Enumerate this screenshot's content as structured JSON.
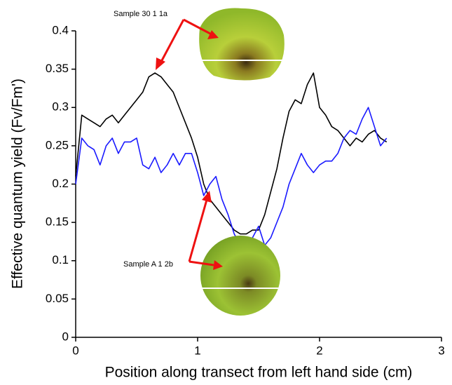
{
  "chart_data": {
    "type": "line",
    "x_label": "Position along transect from left hand side (cm)",
    "y_label": "Effective quantum yield (Fv/Fm')",
    "annotations": [
      "Sample 30 1 1a",
      "Sample A 1 2b"
    ],
    "x": [
      0,
      0.05,
      0.1,
      0.15,
      0.2,
      0.25,
      0.3,
      0.35,
      0.4,
      0.45,
      0.5,
      0.55,
      0.6,
      0.65,
      0.7,
      0.75,
      0.8,
      0.85,
      0.9,
      0.95,
      1.0,
      1.05,
      1.1,
      1.15,
      1.2,
      1.25,
      1.3,
      1.35,
      1.4,
      1.45,
      1.5,
      1.55,
      1.6,
      1.65,
      1.7,
      1.75,
      1.8,
      1.85,
      1.9,
      1.95,
      2.0,
      2.05,
      2.1,
      2.15,
      2.2,
      2.25,
      2.3,
      2.35,
      2.4,
      2.45,
      2.5,
      2.55
    ],
    "series": [
      {
        "color": "#000000",
        "values": [
          0.21,
          0.29,
          0.285,
          0.28,
          0.275,
          0.285,
          0.29,
          0.28,
          0.29,
          0.3,
          0.31,
          0.32,
          0.34,
          0.345,
          0.34,
          0.33,
          0.32,
          0.3,
          0.28,
          0.26,
          0.235,
          0.2,
          0.18,
          0.17,
          0.16,
          0.15,
          0.14,
          0.135,
          0.135,
          0.14,
          0.14,
          0.16,
          0.19,
          0.22,
          0.26,
          0.295,
          0.31,
          0.305,
          0.33,
          0.345,
          0.3,
          0.29,
          0.275,
          0.27,
          0.26,
          0.25,
          0.26,
          0.255,
          0.265,
          0.27,
          0.26,
          0.255
        ]
      },
      {
        "color": "#1a1aff",
        "values": [
          0.2,
          0.26,
          0.25,
          0.245,
          0.225,
          0.25,
          0.26,
          0.24,
          0.255,
          0.255,
          0.26,
          0.225,
          0.22,
          0.235,
          0.215,
          0.225,
          0.24,
          0.225,
          0.24,
          0.24,
          0.215,
          0.185,
          0.2,
          0.21,
          0.18,
          0.16,
          0.135,
          0.12,
          0.12,
          0.13,
          0.145,
          0.12,
          0.13,
          0.15,
          0.17,
          0.2,
          0.22,
          0.24,
          0.225,
          0.215,
          0.225,
          0.23,
          0.23,
          0.24,
          0.26,
          0.27,
          0.265,
          0.285,
          0.3,
          0.275,
          0.25,
          0.26
        ]
      }
    ],
    "xlim": [
      0,
      3
    ],
    "xticks": [
      0,
      1,
      2,
      3
    ],
    "ylim": [
      0,
      0.4
    ],
    "yticks": [
      0,
      0.05,
      0.1,
      0.15,
      0.2,
      0.25,
      0.3,
      0.35,
      0.4
    ],
    "grid": false
  }
}
